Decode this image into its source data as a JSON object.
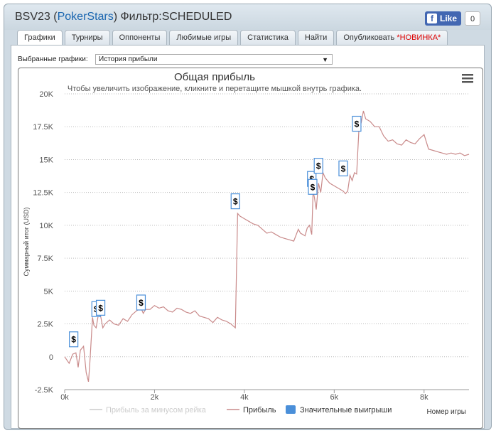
{
  "window": {
    "title_prefix": "BSV23 (",
    "title_link": "PokerStars",
    "title_suffix": ") Фильтр:SCHEDULED",
    "fb_like": "Like",
    "fb_count": "0"
  },
  "tabs": [
    {
      "label": "Графики",
      "active": true
    },
    {
      "label": "Турниры"
    },
    {
      "label": "Оппоненты"
    },
    {
      "label": "Любимые игры"
    },
    {
      "label": "Статистика"
    },
    {
      "label": "Найти"
    },
    {
      "label": "Опубликовать",
      "badge": "*НОВИНКА*"
    }
  ],
  "selector": {
    "label": "Выбранные графики:",
    "value": "История прибыли"
  },
  "chart_data": {
    "type": "line",
    "title": "Общая прибыль",
    "subtitle": "Чтобы увеличить изображение, кликните и перетащите мышкой внутрь графика.",
    "ylabel": "Суммарный итог (USD)",
    "xlabel": "Номер игры",
    "ylim": [
      -2500,
      20000
    ],
    "xlim": [
      0,
      9000
    ],
    "yticks": [
      "-2.5K",
      "0",
      "2.5K",
      "5K",
      "7.5K",
      "10K",
      "12.5K",
      "15K",
      "17.5K",
      "20K"
    ],
    "xticks": [
      "0k",
      "2k",
      "4k",
      "6k",
      "8k"
    ],
    "grid": true,
    "legend_position": "bottom",
    "legend": [
      {
        "name": "Прибыль за минусом рейка",
        "color": "#cccccc",
        "hidden": true
      },
      {
        "name": "Прибыль",
        "color": "#c98a8a"
      },
      {
        "name": "Значительные выигрыши",
        "color": "#4a8fd9"
      }
    ],
    "series": [
      {
        "name": "Прибыль",
        "color": "#c98a8a",
        "x": [
          0,
          100,
          180,
          250,
          300,
          350,
          420,
          480,
          530,
          560,
          620,
          650,
          700,
          750,
          800,
          850,
          900,
          1000,
          1100,
          1200,
          1300,
          1400,
          1500,
          1600,
          1700,
          1750,
          1800,
          1900,
          2000,
          2100,
          2200,
          2300,
          2400,
          2500,
          2600,
          2700,
          2800,
          2900,
          3000,
          3100,
          3200,
          3300,
          3400,
          3500,
          3600,
          3700,
          3800,
          3850,
          3900,
          4000,
          4100,
          4200,
          4300,
          4400,
          4500,
          4600,
          4700,
          4800,
          4900,
          5000,
          5100,
          5200,
          5250,
          5300,
          5350,
          5400,
          5450,
          5500,
          5530,
          5560,
          5600,
          5650,
          5700,
          5750,
          5800,
          5900,
          6000,
          6100,
          6200,
          6250,
          6300,
          6350,
          6400,
          6450,
          6500,
          6550,
          6600,
          6650,
          6700,
          6800,
          6900,
          7000,
          7100,
          7200,
          7300,
          7400,
          7500,
          7600,
          7700,
          7800,
          7900,
          8000,
          8100,
          8200,
          8300,
          8400,
          8500,
          8600,
          8700,
          8800,
          8900,
          9000
        ],
        "y": [
          0,
          -500,
          200,
          300,
          -800,
          500,
          800,
          -1200,
          -1900,
          -500,
          3000,
          2400,
          2200,
          3200,
          3100,
          2200,
          2500,
          2800,
          2500,
          2400,
          2900,
          2700,
          3200,
          3500,
          3700,
          3300,
          3600,
          3600,
          3900,
          3700,
          3800,
          3500,
          3400,
          3700,
          3600,
          3400,
          3300,
          3500,
          3100,
          3000,
          2900,
          2600,
          3000,
          2800,
          2700,
          2500,
          2200,
          10900,
          10700,
          10500,
          10300,
          10100,
          10000,
          9700,
          9400,
          9500,
          9300,
          9100,
          9000,
          8900,
          8800,
          9700,
          9400,
          9300,
          9200,
          9800,
          10000,
          9300,
          12600,
          12100,
          11200,
          13200,
          12500,
          14000,
          13600,
          13200,
          13000,
          12800,
          12600,
          12400,
          12600,
          13800,
          13400,
          14000,
          13900,
          17300,
          17800,
          18700,
          18100,
          17900,
          17500,
          17500,
          16800,
          16400,
          16500,
          16200,
          16100,
          16500,
          16300,
          16200,
          16600,
          16900,
          15800,
          15700,
          15600,
          15500,
          15400,
          15500,
          15400,
          15500,
          15300,
          15400
        ]
      }
    ],
    "big_wins_x": [
      200,
      700,
      800,
      1700,
      3800,
      5500,
      5520,
      5650,
      6200,
      6500
    ],
    "big_wins_y": [
      1300,
      3600,
      3700,
      4100,
      11800,
      13500,
      12900,
      14500,
      14300,
      17700
    ],
    "big_win_marker": "$",
    "menu_icon": "hamburger-icon"
  }
}
